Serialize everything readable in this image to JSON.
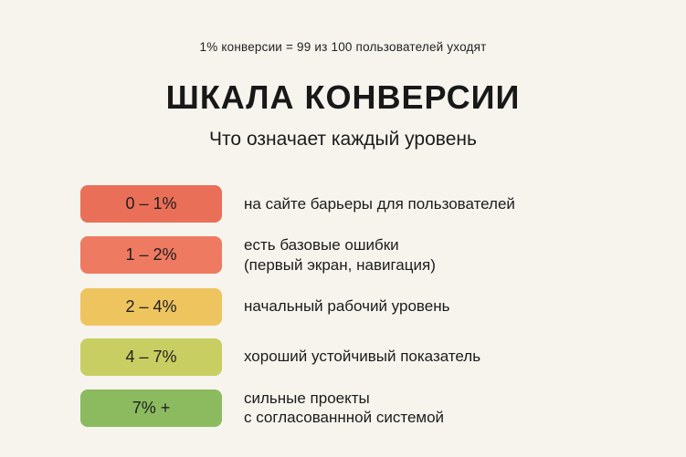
{
  "header": {
    "note": "1% конверсии = 99 из 100 пользователей уходят",
    "title": "ШКАЛА КОНВЕРСИИ",
    "subtitle": "Что означает каждый уровень"
  },
  "scale": {
    "items": [
      {
        "range": "0 – 1%",
        "color": "#ea6f58",
        "description": "на сайте барьеры для пользователей"
      },
      {
        "range": "1 – 2%",
        "color": "#ee7a61",
        "description": "есть базовые ошибки\n(первый экран, навигация)"
      },
      {
        "range": "2 – 4%",
        "color": "#eec45f",
        "description": "начальный рабочий уровень"
      },
      {
        "range": "4 – 7%",
        "color": "#c9ce62",
        "description": "хороший устойчивый показатель"
      },
      {
        "range": "7% +",
        "color": "#8bba5f",
        "description": "сильные проекты\nс согласованнной системой"
      }
    ]
  }
}
